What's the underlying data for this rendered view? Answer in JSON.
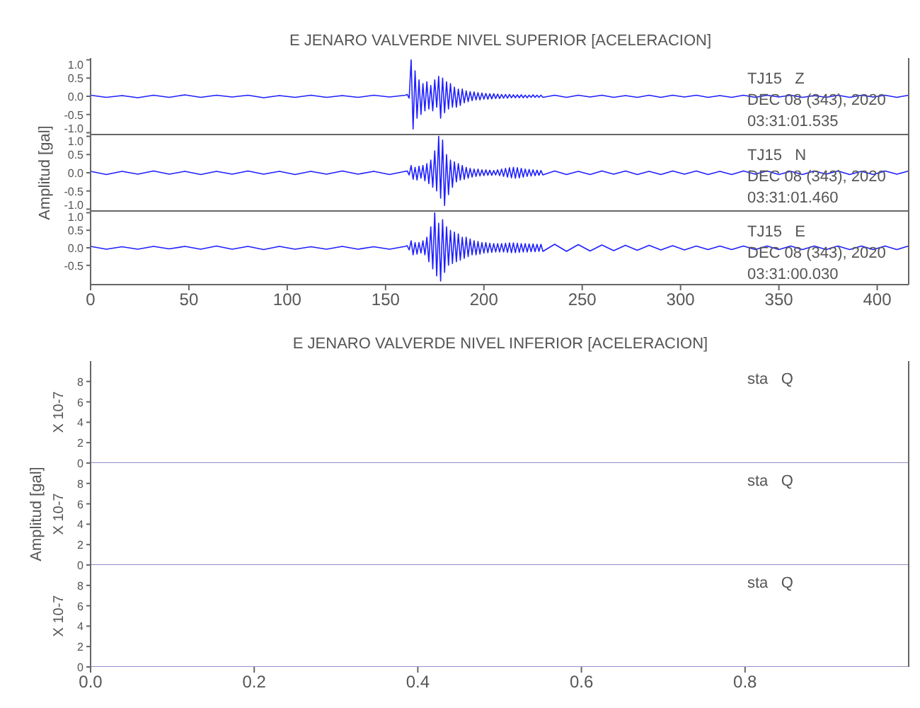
{
  "chart_data": [
    {
      "type": "line",
      "title": "E JENARO VALVERDE NIVEL SUPERIOR [ACELERACION]",
      "annotations": [
        "TJ15   Z",
        "DEC 08 (343), 2020",
        "03:31:01.535"
      ],
      "color": "#1f1fff",
      "tick_labels": "y",
      "xlim": [
        0,
        416
      ],
      "xticks": [
        0,
        50,
        100,
        150,
        200,
        250,
        300,
        350,
        400
      ],
      "ylim": [
        -1.05,
        1.05
      ],
      "yticks": [
        {
          "value": 1,
          "label": "1.0"
        },
        {
          "value": 0.5,
          "label": "0.5"
        },
        {
          "value": 0,
          "label": "0.0"
        },
        {
          "value": -0.5,
          "label": "-0.5"
        },
        {
          "value": -1,
          "label": "-1.0"
        }
      ],
      "x": [
        0,
        8,
        16,
        24,
        32,
        40,
        48,
        56,
        64,
        72,
        80,
        88,
        96,
        104,
        112,
        120,
        128,
        136,
        144,
        152,
        160,
        161,
        162,
        163,
        164,
        165,
        166,
        167,
        168,
        169,
        170,
        171,
        172,
        173,
        174,
        175,
        176,
        177,
        178,
        179,
        180,
        181,
        182,
        183,
        184,
        185,
        186,
        187,
        188,
        189,
        190,
        191,
        192,
        193,
        194,
        195,
        196,
        197,
        198,
        199,
        200,
        201,
        202,
        203,
        204,
        205,
        206,
        207,
        208,
        209,
        210,
        211,
        212,
        213,
        214,
        215,
        216,
        217,
        218,
        219,
        220,
        221,
        222,
        223,
        224,
        225,
        226,
        227,
        228,
        229,
        230,
        236,
        242,
        248,
        254,
        260,
        266,
        272,
        278,
        284,
        290,
        296,
        302,
        308,
        314,
        320,
        326,
        332,
        338,
        344,
        350,
        356,
        362,
        368,
        374,
        380,
        386,
        392,
        398,
        404,
        410,
        416
      ],
      "values": [
        0.03,
        -0.03,
        0.02,
        -0.04,
        0.03,
        -0.03,
        0.04,
        -0.03,
        0.03,
        -0.02,
        0.03,
        -0.04,
        0.02,
        -0.03,
        0.03,
        -0.03,
        0.02,
        -0.03,
        0.03,
        -0.02,
        0.03,
        0.05,
        -0.05,
        1.0,
        -0.9,
        0.7,
        -0.6,
        0.45,
        -0.5,
        0.35,
        -0.4,
        0.4,
        -0.35,
        0.3,
        -0.4,
        0.45,
        -0.3,
        0.55,
        -0.6,
        0.5,
        -0.45,
        0.4,
        -0.35,
        0.35,
        -0.3,
        0.25,
        -0.3,
        0.2,
        -0.25,
        0.2,
        -0.18,
        0.15,
        -0.15,
        0.13,
        -0.12,
        0.12,
        -0.1,
        0.1,
        -0.1,
        0.09,
        -0.08,
        0.08,
        -0.08,
        0.07,
        -0.07,
        0.07,
        -0.06,
        0.06,
        -0.06,
        0.05,
        -0.05,
        0.05,
        -0.05,
        0.05,
        -0.04,
        0.04,
        -0.04,
        0.04,
        -0.04,
        0.04,
        -0.04,
        0.03,
        -0.04,
        0.03,
        -0.03,
        0.04,
        -0.03,
        0.03,
        -0.03,
        0.03,
        -0.03,
        0.03,
        -0.03,
        0.03,
        -0.02,
        0.03,
        -0.03,
        0.02,
        -0.03,
        0.03,
        -0.03,
        0.03,
        -0.02,
        0.03,
        -0.03,
        0.02,
        -0.03,
        0.03,
        -0.03,
        0.03,
        -0.02,
        0.03,
        -0.03,
        0.02,
        -0.03,
        0.03,
        -0.03,
        0.03,
        -0.02,
        0.03,
        -0.03,
        0.03
      ]
    },
    {
      "type": "line",
      "ylabel": "Amplitud [gal]",
      "annotations": [
        "TJ15   N",
        "DEC 08 (343), 2020",
        "03:31:01.460"
      ],
      "color": "#1f1fff",
      "tick_labels": "y",
      "xlim": [
        0,
        416
      ],
      "xticks": [
        0,
        50,
        100,
        150,
        200,
        250,
        300,
        350,
        400
      ],
      "ylim": [
        -1.05,
        1.05
      ],
      "yticks": [
        {
          "value": 1,
          "label": "1.0"
        },
        {
          "value": 0.5,
          "label": "0.5"
        },
        {
          "value": 0,
          "label": "0.0"
        },
        {
          "value": -0.5,
          "label": "-0.5"
        },
        {
          "value": -1,
          "label": "-1.0"
        }
      ],
      "x": [
        0,
        8,
        16,
        24,
        32,
        40,
        48,
        56,
        64,
        72,
        80,
        88,
        96,
        104,
        112,
        120,
        128,
        136,
        144,
        152,
        160,
        161,
        162,
        163,
        164,
        165,
        166,
        167,
        168,
        169,
        170,
        171,
        172,
        173,
        174,
        175,
        176,
        177,
        178,
        179,
        180,
        181,
        182,
        183,
        184,
        185,
        186,
        187,
        188,
        189,
        190,
        191,
        192,
        193,
        194,
        195,
        196,
        197,
        198,
        199,
        200,
        201,
        202,
        203,
        204,
        205,
        206,
        207,
        208,
        209,
        210,
        211,
        212,
        213,
        214,
        215,
        216,
        217,
        218,
        219,
        220,
        221,
        222,
        223,
        224,
        225,
        226,
        227,
        228,
        229,
        230,
        236,
        242,
        248,
        254,
        260,
        266,
        272,
        278,
        284,
        290,
        296,
        302,
        308,
        314,
        320,
        326,
        332,
        338,
        344,
        350,
        356,
        362,
        368,
        374,
        380,
        386,
        392,
        398,
        404,
        410,
        416
      ],
      "values": [
        0.04,
        -0.05,
        0.04,
        -0.04,
        0.05,
        -0.04,
        0.04,
        -0.05,
        0.04,
        -0.04,
        0.05,
        -0.04,
        0.04,
        -0.05,
        0.04,
        -0.04,
        0.05,
        -0.04,
        0.04,
        -0.05,
        0.04,
        0.05,
        -0.06,
        0.2,
        -0.18,
        0.15,
        -0.2,
        0.18,
        -0.15,
        0.2,
        -0.22,
        0.25,
        -0.3,
        0.35,
        -0.4,
        0.6,
        -0.5,
        1.0,
        -0.7,
        0.9,
        -0.9,
        0.5,
        -0.6,
        0.35,
        -0.4,
        0.3,
        -0.25,
        0.25,
        -0.2,
        0.2,
        -0.18,
        0.15,
        -0.15,
        0.12,
        -0.12,
        0.1,
        -0.1,
        0.1,
        -0.09,
        0.08,
        -0.08,
        0.08,
        -0.07,
        0.07,
        -0.07,
        0.06,
        -0.06,
        0.08,
        -0.08,
        0.1,
        -0.1,
        0.12,
        -0.12,
        0.14,
        -0.14,
        0.15,
        -0.15,
        0.14,
        -0.14,
        0.12,
        -0.12,
        0.1,
        -0.1,
        0.09,
        -0.09,
        0.08,
        -0.08,
        0.07,
        -0.07,
        0.06,
        -0.06,
        0.05,
        -0.05,
        0.04,
        -0.05,
        0.05,
        -0.04,
        0.05,
        -0.05,
        0.04,
        -0.05,
        0.05,
        -0.04,
        0.05,
        -0.05,
        0.04,
        -0.05,
        0.05,
        -0.04,
        0.05,
        -0.05,
        0.04,
        -0.05,
        0.05,
        -0.04,
        0.05,
        -0.05,
        0.04,
        -0.05,
        0.05,
        -0.04,
        0.05
      ]
    },
    {
      "type": "line",
      "annotations": [
        "TJ15   E",
        "DEC 08 (343), 2020",
        "03:31:00.030"
      ],
      "color": "#1f1fff",
      "xlim": [
        0,
        416
      ],
      "xticks": [
        0,
        50,
        100,
        150,
        200,
        250,
        300,
        350,
        400
      ],
      "ylim": [
        -1.05,
        1.05
      ],
      "yticks": [
        {
          "value": 1,
          "label": "1.0"
        },
        {
          "value": 0.5,
          "label": "0.5"
        },
        {
          "value": 0,
          "label": "0.0"
        },
        {
          "value": -0.5,
          "label": "-0.5"
        }
      ],
      "x": [
        0,
        8,
        16,
        24,
        32,
        40,
        48,
        56,
        64,
        72,
        80,
        88,
        96,
        104,
        112,
        120,
        128,
        136,
        144,
        152,
        160,
        161,
        162,
        163,
        164,
        165,
        166,
        167,
        168,
        169,
        170,
        171,
        172,
        173,
        174,
        175,
        176,
        177,
        178,
        179,
        180,
        181,
        182,
        183,
        184,
        185,
        186,
        187,
        188,
        189,
        190,
        191,
        192,
        193,
        194,
        195,
        196,
        197,
        198,
        199,
        200,
        201,
        202,
        203,
        204,
        205,
        206,
        207,
        208,
        209,
        210,
        211,
        212,
        213,
        214,
        215,
        216,
        217,
        218,
        219,
        220,
        221,
        222,
        223,
        224,
        225,
        226,
        227,
        228,
        229,
        230,
        236,
        242,
        248,
        254,
        260,
        266,
        272,
        278,
        284,
        290,
        296,
        302,
        308,
        314,
        320,
        326,
        332,
        338,
        344,
        350,
        356,
        362,
        368,
        374,
        380,
        386,
        392,
        398,
        404,
        410,
        416
      ],
      "values": [
        0.04,
        -0.04,
        0.03,
        -0.04,
        0.04,
        -0.03,
        0.04,
        -0.04,
        0.05,
        -0.04,
        0.04,
        -0.05,
        0.04,
        -0.04,
        0.03,
        -0.04,
        0.04,
        -0.04,
        0.03,
        -0.04,
        0.04,
        0.06,
        -0.06,
        0.2,
        -0.2,
        0.15,
        -0.18,
        0.15,
        -0.15,
        0.2,
        -0.2,
        0.3,
        -0.4,
        0.6,
        -0.6,
        1.0,
        -0.8,
        0.7,
        -0.95,
        0.8,
        -0.7,
        0.6,
        -0.5,
        0.5,
        -0.45,
        0.45,
        -0.4,
        0.4,
        -0.35,
        0.3,
        -0.3,
        0.3,
        -0.25,
        0.25,
        -0.2,
        0.2,
        -0.2,
        0.18,
        -0.18,
        0.15,
        -0.15,
        0.15,
        -0.14,
        0.13,
        -0.13,
        0.12,
        -0.12,
        0.12,
        -0.12,
        0.12,
        -0.12,
        0.13,
        -0.13,
        0.14,
        -0.14,
        0.14,
        -0.14,
        0.13,
        -0.13,
        0.12,
        -0.12,
        0.12,
        -0.12,
        0.11,
        -0.11,
        0.11,
        -0.11,
        0.1,
        -0.1,
        0.1,
        -0.1,
        0.1,
        -0.1,
        0.09,
        -0.09,
        0.08,
        -0.08,
        0.07,
        -0.07,
        0.07,
        -0.06,
        0.06,
        -0.06,
        0.05,
        -0.05,
        0.05,
        -0.05,
        0.05,
        -0.05,
        0.05,
        -0.05,
        0.05,
        -0.05,
        0.05,
        -0.05,
        0.05,
        -0.05,
        0.05,
        -0.05,
        0.05,
        -0.05,
        0.05
      ]
    },
    {
      "type": "line",
      "title": "E JENARO VALVERDE NIVEL INFERIOR [ACELERACION]",
      "annotations": [
        "X 10-7",
        "sta   Q"
      ],
      "color": "#6a6ab8",
      "tick_labels": "y",
      "xlim": [
        0,
        1
      ],
      "xticks": [
        0,
        0.2,
        0.4,
        0.6,
        0.8
      ],
      "ylim": [
        0,
        10
      ],
      "yticks": [
        0,
        2,
        4,
        6,
        8
      ],
      "x": [
        0,
        1
      ],
      "values": [
        0,
        0
      ]
    },
    {
      "type": "line",
      "ylabel": "Amplitud [gal]",
      "annotations": [
        "X 10-7",
        "sta   Q"
      ],
      "color": "#6a6ab8",
      "tick_labels": "y",
      "xlim": [
        0,
        1
      ],
      "xticks": [
        0,
        0.2,
        0.4,
        0.6,
        0.8
      ],
      "ylim": [
        0,
        10
      ],
      "yticks": [
        0,
        2,
        4,
        6,
        8
      ],
      "x": [
        0,
        1
      ],
      "values": [
        0,
        0
      ]
    },
    {
      "type": "line",
      "annotations": [
        "X 10-7",
        "sta   Q"
      ],
      "color": "#6a6ab8",
      "xlim": [
        0,
        1
      ],
      "xticks": [
        {
          "value": 0,
          "label": "0.0"
        },
        {
          "value": 0.2,
          "label": "0.2"
        },
        {
          "value": 0.4,
          "label": "0.4"
        },
        {
          "value": 0.6,
          "label": "0.6"
        },
        {
          "value": 0.8,
          "label": "0.8"
        }
      ],
      "ylim": [
        0,
        10
      ],
      "yticks": [
        0,
        2,
        4,
        6,
        8
      ],
      "x": [
        0,
        1
      ],
      "values": [
        0,
        0
      ]
    }
  ]
}
